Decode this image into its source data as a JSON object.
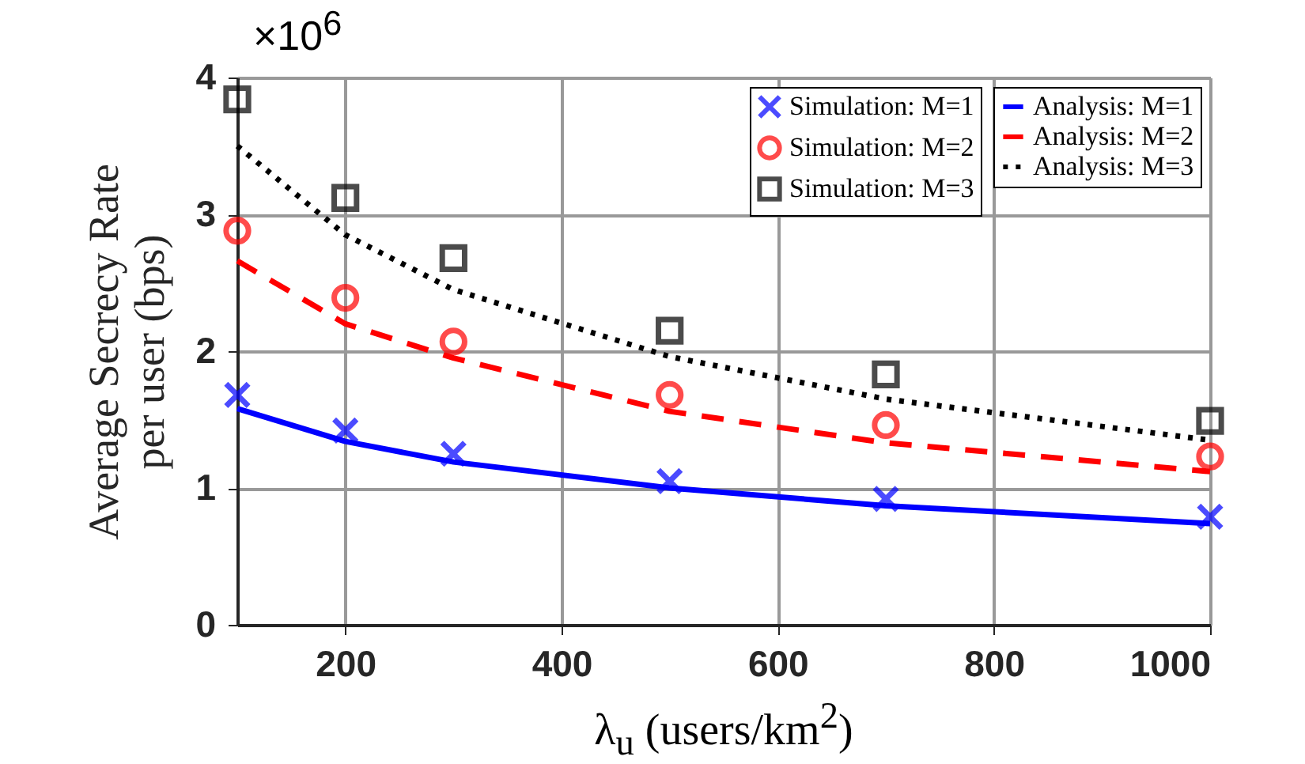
{
  "chart_data": {
    "type": "line",
    "xlabel": "λ$_{u}$ (users/km$^{2}$)",
    "ylabel": "Average Secrecy Rate\nper user (bps)",
    "annotations": [
      "×10$^{6}$"
    ],
    "x": [
      100,
      200,
      300,
      500,
      700,
      1000
    ],
    "xlim": [
      100,
      1000
    ],
    "xticks": [
      200,
      400,
      600,
      800,
      1000
    ],
    "ylim": [
      0,
      4
    ],
    "yticks": [
      0,
      1,
      2,
      3,
      4
    ],
    "grid": true,
    "legend": "top right",
    "series": [
      {
        "name": "Simulation: M=1",
        "type": "scatter",
        "marker": "cross",
        "color": "#0000ff",
        "values": [
          1.68,
          1.42,
          1.25,
          1.05,
          0.92,
          0.79
        ]
      },
      {
        "name": "Simulation: M=2",
        "type": "scatter",
        "marker": "circle",
        "color": "#ff0000",
        "values": [
          2.88,
          2.39,
          2.07,
          1.68,
          1.46,
          1.23
        ]
      },
      {
        "name": "Simulation: M=3",
        "type": "scatter",
        "marker": "square",
        "color": "#000000",
        "values": [
          3.84,
          3.12,
          2.68,
          2.15,
          1.83,
          1.49
        ]
      },
      {
        "name": "Analysis: M=1",
        "type": "line",
        "line_style": "solid",
        "color": "#0000ff",
        "values": [
          1.58,
          1.34,
          1.19,
          1.0,
          0.87,
          0.74
        ]
      },
      {
        "name": "Analysis: M=2",
        "type": "line",
        "line_style": "dashed",
        "color": "#ff0000",
        "values": [
          2.66,
          2.2,
          1.95,
          1.56,
          1.33,
          1.12
        ]
      },
      {
        "name": "Analysis: M=3",
        "type": "line",
        "line_style": "dotted",
        "color": "#000000",
        "values": [
          3.5,
          2.85,
          2.45,
          1.96,
          1.65,
          1.35
        ]
      }
    ]
  }
}
